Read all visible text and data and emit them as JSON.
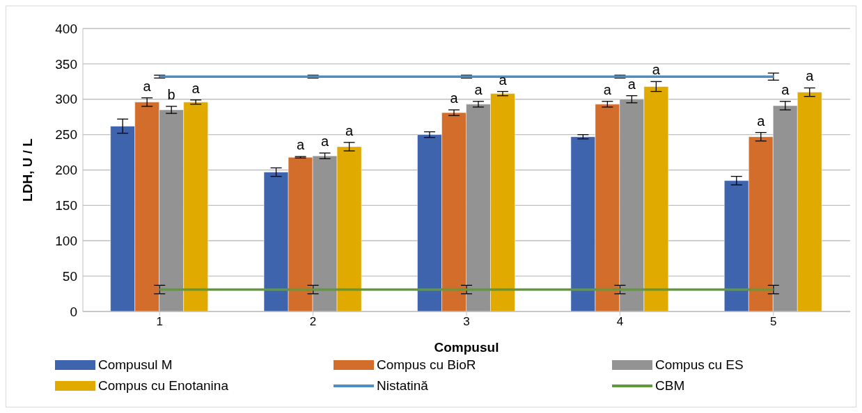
{
  "chart_data": {
    "type": "bar",
    "xlabel": "Compusul",
    "ylabel": "LDH, U / L",
    "categories": [
      "1",
      "2",
      "3",
      "4",
      "5"
    ],
    "series": [
      {
        "name": "Compusul M",
        "color": "#3d64ac",
        "values": [
          262,
          197,
          250,
          247,
          185
        ],
        "errors": [
          10,
          6,
          4,
          3,
          6
        ],
        "value_labels": [
          null,
          null,
          null,
          null,
          null
        ]
      },
      {
        "name": "Compus cu BioR",
        "color": "#d36d2b",
        "values": [
          296,
          218,
          281,
          293,
          247
        ],
        "errors": [
          6,
          1,
          4,
          4,
          6
        ],
        "value_labels": [
          "a",
          "a",
          "a",
          "a",
          "a"
        ]
      },
      {
        "name": "Compus cu ES",
        "color": "#939393",
        "values": [
          285,
          220,
          293,
          300,
          291
        ],
        "errors": [
          5,
          4,
          4,
          5,
          6
        ],
        "value_labels": [
          "b",
          "a",
          "a",
          "a",
          "a"
        ]
      },
      {
        "name": "Compus cu Enotanina",
        "color": "#e0aa00",
        "values": [
          296,
          233,
          308,
          318,
          310
        ],
        "errors": [
          3,
          6,
          3,
          7,
          6
        ],
        "value_labels": [
          "a",
          "a",
          "a",
          "a",
          "a"
        ]
      },
      {
        "name": "Nistatină",
        "type": "line",
        "color": "#4f8cc4",
        "values": [
          332,
          332,
          332,
          332,
          332
        ],
        "errors": [
          2,
          2,
          2,
          2,
          5
        ]
      },
      {
        "name": "CBM",
        "type": "line",
        "color": "#62993a",
        "values": [
          31,
          31,
          31,
          31,
          31
        ],
        "errors": [
          6,
          6,
          6,
          6,
          6
        ]
      }
    ],
    "ylim": [
      0,
      400
    ],
    "yticks": [
      0,
      50,
      100,
      150,
      200,
      250,
      300,
      350,
      400
    ],
    "grid": "y",
    "legend": "bottom",
    "marker": "none"
  }
}
